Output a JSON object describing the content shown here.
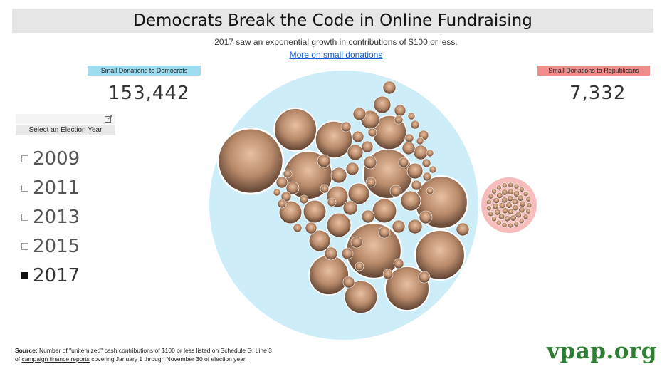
{
  "header": {
    "title": "Democrats Break the Code in Online Fundraising",
    "subtitle": "2017 saw an exponential growth in contributions of $100 or less.",
    "link": "More on small donations"
  },
  "democrats": {
    "label": "Small Donations to Democrats",
    "count": "153,442",
    "color": "#cdeef8"
  },
  "republicans": {
    "label": "Small Donations to Republicans",
    "count": "7,332",
    "color": "#f7bcbc"
  },
  "slicer": {
    "title": "Select an Election Year",
    "options": [
      {
        "label": "2009",
        "selected": false
      },
      {
        "label": "2011",
        "selected": false
      },
      {
        "label": "2013",
        "selected": false
      },
      {
        "label": "2015",
        "selected": false
      },
      {
        "label": "2017",
        "selected": true
      }
    ]
  },
  "footer": {
    "source_label": "Source:",
    "source_text_1": "Number of \"unitemized\" cash contributions of $100 or less listed on Schedule G, Line 3",
    "source_text_2a": "of",
    "source_link": "campaign finance reports",
    "source_text_2b": "covering January 1 through November 30 of election year.",
    "logo": "vpap.org"
  }
}
